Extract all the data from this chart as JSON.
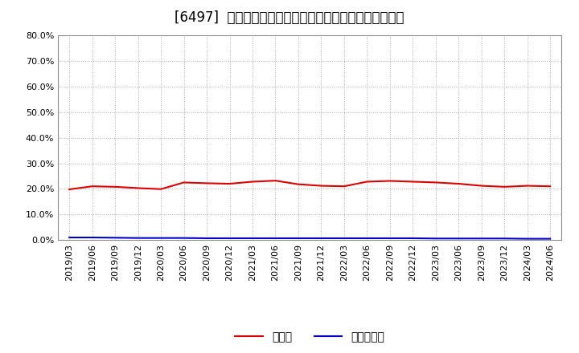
{
  "title": "[6497]  現預金、有利子負債の総資産に対する比率の推移",
  "background_color": "#ffffff",
  "plot_bg_color": "#ffffff",
  "grid_color": "#aaaaaa",
  "x_labels": [
    "2019/03",
    "2019/06",
    "2019/09",
    "2019/12",
    "2020/03",
    "2020/06",
    "2020/09",
    "2020/12",
    "2021/03",
    "2021/06",
    "2021/09",
    "2021/12",
    "2022/03",
    "2022/06",
    "2022/09",
    "2022/12",
    "2023/03",
    "2023/06",
    "2023/09",
    "2023/12",
    "2024/03",
    "2024/06"
  ],
  "cash_ratio": [
    19.8,
    21.0,
    20.8,
    20.3,
    19.9,
    22.5,
    22.2,
    22.0,
    22.8,
    23.2,
    21.8,
    21.2,
    21.0,
    22.8,
    23.1,
    22.8,
    22.5,
    22.0,
    21.2,
    20.8,
    21.2,
    21.0
  ],
  "debt_ratio": [
    1.0,
    1.0,
    0.9,
    0.8,
    0.8,
    0.8,
    0.7,
    0.7,
    0.7,
    0.7,
    0.7,
    0.7,
    0.7,
    0.7,
    0.7,
    0.7,
    0.6,
    0.6,
    0.6,
    0.6,
    0.5,
    0.5
  ],
  "cash_color": "#dd0000",
  "debt_color": "#0000cc",
  "ylim": [
    0,
    80
  ],
  "yticks": [
    0,
    10,
    20,
    30,
    40,
    50,
    60,
    70,
    80
  ],
  "legend_cash": "現預金",
  "legend_debt": "有利子負債",
  "title_fontsize": 12,
  "tick_fontsize": 8,
  "legend_fontsize": 10
}
